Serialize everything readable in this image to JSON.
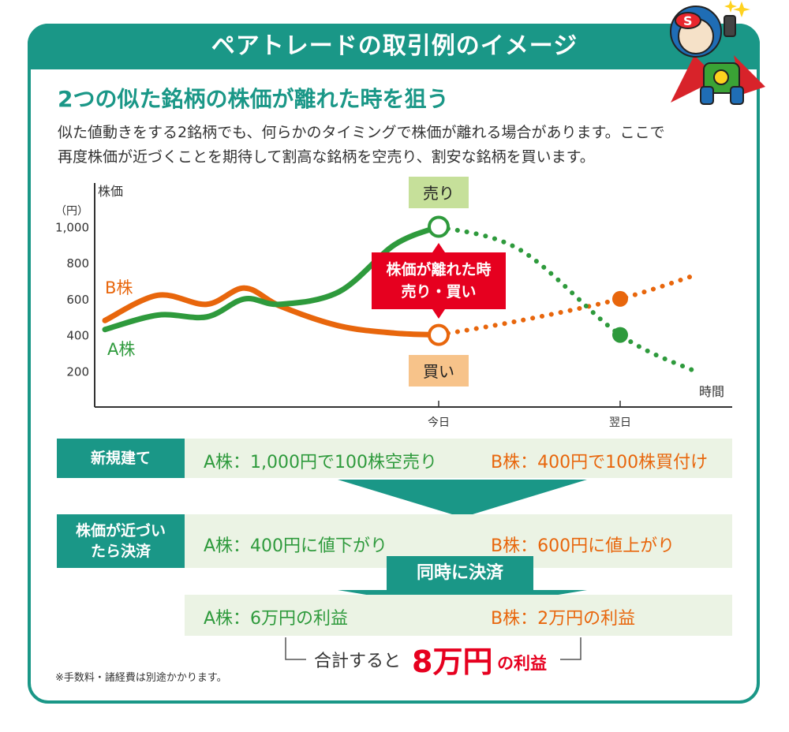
{
  "header": {
    "title": "ペアトレードの取引例のイメージ"
  },
  "subtitle": "2つの似た銘柄の株価が離れた時を狙う",
  "description": [
    "似た値動きをする2銘柄でも、何らかのタイミングで株価が離れる場合があります。ここで",
    "再度株価が近づくことを期待して割高な銘柄を空売り、割安な銘柄を買います。"
  ],
  "chart_data": {
    "type": "line",
    "ylabel": "株価",
    "yunit": "（円）",
    "xlabel": "時間",
    "ylim": [
      0,
      1100
    ],
    "yticks": [
      200,
      400,
      600,
      800,
      1000
    ],
    "ytick_labels": [
      "200",
      "400",
      "600",
      "800",
      "1,000"
    ],
    "xticks": [
      "今日",
      "翌日"
    ],
    "grid": false,
    "series": [
      {
        "name": "A株",
        "color": "#2e9a3c",
        "x": [
          0,
          1,
          2,
          3,
          4,
          5,
          6,
          7,
          8,
          9,
          10
        ],
        "values": [
          430,
          510,
          500,
          600,
          570,
          640,
          900,
          1000,
          870,
          400,
          200
        ],
        "solid_until": 7
      },
      {
        "name": "B株",
        "color": "#e8660c",
        "x": [
          0,
          1,
          2,
          3,
          4,
          5,
          6,
          7,
          8,
          9,
          10
        ],
        "values": [
          480,
          620,
          570,
          660,
          560,
          450,
          410,
          400,
          480,
          600,
          730
        ],
        "solid_until": 7
      }
    ],
    "annotations": {
      "sell": "売り",
      "buy": "買い",
      "gap": [
        "株価が離れた時",
        "売り・買い"
      ]
    }
  },
  "rows": {
    "open": {
      "label": "新規建て",
      "a": "A株：1,000円で100株空売り",
      "b": "B株：400円で100株買付け"
    },
    "close": {
      "label_line1": "株価が近づい",
      "label_line2": "たら決済",
      "a": "A株：400円に値下がり",
      "b": "B株：600円に値上がり"
    },
    "same_time": "同時に決済",
    "result": {
      "a": "A株：6万円の利益",
      "b": "B株：2万円の利益"
    },
    "total": {
      "prefix": "合計すると",
      "amount": "8万円",
      "suffix": "の利益"
    }
  },
  "note": "※手数料・諸経費は別途かかります。",
  "colors": {
    "teal": "#1a9787",
    "green": "#2e9a3c",
    "orange": "#e8660c",
    "red": "#e6001f",
    "light_green_bg": "#ebf3e4",
    "sell_bg": "#c6e09a",
    "buy_bg": "#f7c38a"
  }
}
